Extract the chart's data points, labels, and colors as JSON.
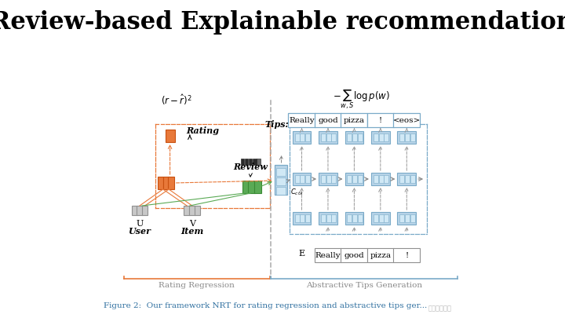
{
  "title": "Review-based Explainable recommendation",
  "title_fontsize": 22,
  "bg_color": "#ffffff",
  "fig_caption": "Figure 2:  Our framework NRT for rating regression and abstractive tips ger...",
  "caption_color": "#3070a0",
  "orange_col": "#e8793a",
  "orange_bord": "#c85010",
  "green_col": "#5aaa55",
  "green_bord": "#3a8a35",
  "blue_col": "#b8d4e8",
  "blue_bord": "#7aaac8",
  "gray_col": "#c8c8c8",
  "gray_bord": "#909090",
  "tip_words": [
    "Really",
    "good",
    "pizza",
    "!",
    "<eos>"
  ],
  "bottom_words": [
    "Really",
    "good",
    "pizza",
    "!"
  ],
  "rating_regression_label": "Rating Regression",
  "abstractive_label": "Abstractive Tips Generation"
}
